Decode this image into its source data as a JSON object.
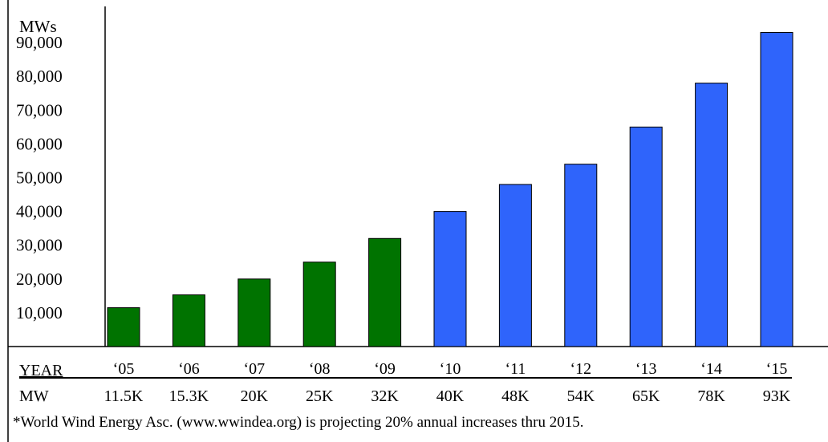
{
  "chart_data": {
    "type": "bar",
    "ylabel": "MWs",
    "ylim": [
      0,
      100000
    ],
    "yticks": [
      "10,000",
      "20,000",
      "30,000",
      "40,000",
      "50,000",
      "60,000",
      "70,000",
      "80,000",
      "90,000"
    ],
    "categories": [
      "'05",
      "'06",
      "'07",
      "'08",
      "'09",
      "'10",
      "'11",
      "'12",
      "'13",
      "'14",
      "'15"
    ],
    "values": [
      11500,
      15300,
      20000,
      25000,
      32000,
      40000,
      48000,
      54000,
      65000,
      78000,
      93000
    ],
    "mw_labels": [
      "11.5K",
      "15.3K",
      "20K",
      "25K",
      "32K",
      "40K",
      "48K",
      "54K",
      "65K",
      "78K",
      "93K"
    ],
    "bar_colors": [
      "#007300",
      "#007300",
      "#007300",
      "#007300",
      "#007300",
      "#2f64fb",
      "#2f64fb",
      "#2f64fb",
      "#2f64fb",
      "#2f64fb",
      "#2f64fb"
    ],
    "grid": false,
    "row_labels": {
      "year": "YEAR",
      "mw": "MW"
    },
    "footnote": "*World Wind Energy Asc. (www.wwindea.org) is projecting 20% annual increases thru 2015."
  }
}
